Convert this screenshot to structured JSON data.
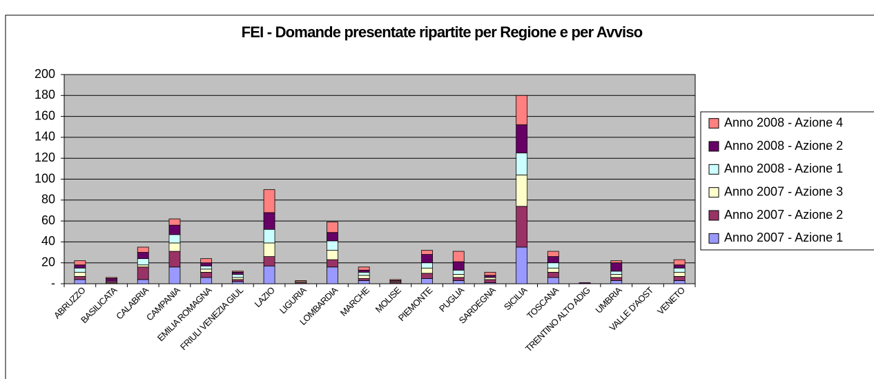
{
  "chart_data": {
    "type": "stacked_bar",
    "title": "FEI - Domande presentate ripartite per Regione e per Avviso",
    "categories": [
      "ABRUZZO",
      "BASILICATA",
      "CALABRIA",
      "CAMPANIA",
      "EMILIA ROMAGNA",
      "FRIULI VENEZIA GIUL",
      "LAZIO",
      "LIGURIA",
      "LOMBARDIA",
      "MARCHE",
      "MOLISE",
      "PIEMONTE",
      "PUGLIA",
      "SARDEGNA",
      "SICILIA",
      "TOSCANA",
      "TRENTINO ALTO ADIG",
      "UMBRIA",
      "VALLE D'AOST",
      "VENETO"
    ],
    "series": [
      {
        "name": "Anno 2007 - Azione 1",
        "color": "#9999FF",
        "values": [
          4,
          0,
          4,
          16,
          6,
          2,
          17,
          0,
          16,
          3,
          0,
          5,
          3,
          1,
          35,
          6,
          0,
          3,
          0,
          3
        ]
      },
      {
        "name": "Anno 2007 - Azione 2",
        "color": "#993366",
        "values": [
          3,
          1,
          12,
          15,
          5,
          2,
          9,
          1,
          7,
          2,
          1,
          5,
          3,
          3,
          39,
          5,
          0,
          3,
          0,
          4
        ]
      },
      {
        "name": "Anno 2007 - Azione 3",
        "color": "#FFFFCC",
        "values": [
          4,
          1,
          2,
          8,
          3,
          2,
          13,
          1,
          9,
          3,
          1,
          5,
          3,
          2,
          30,
          4,
          0,
          3,
          0,
          4
        ]
      },
      {
        "name": "Anno 2008 - Azione 1",
        "color": "#CCFFFF",
        "values": [
          4,
          0,
          6,
          8,
          3,
          3,
          13,
          0,
          9,
          3,
          0,
          5,
          4,
          0,
          21,
          5,
          0,
          3,
          0,
          4
        ]
      },
      {
        "name": "Anno 2008 - Azione 2",
        "color": "#660066",
        "values": [
          3,
          3,
          6,
          9,
          3,
          2,
          16,
          0,
          8,
          2,
          1,
          8,
          8,
          2,
          27,
          6,
          1,
          8,
          0,
          3
        ]
      },
      {
        "name": "Anno 2008 - Azione 4",
        "color": "#FF8080",
        "values": [
          4,
          1,
          5,
          6,
          4,
          1,
          22,
          1,
          10,
          3,
          1,
          4,
          10,
          3,
          28,
          5,
          0,
          2,
          0,
          5
        ]
      }
    ],
    "ylim": [
      0,
      200
    ],
    "yticks": [
      {
        "value": 0,
        "label": "-"
      },
      20,
      40,
      60,
      80,
      100,
      120,
      140,
      160,
      180,
      200
    ],
    "grid": true,
    "plot_background": "#C0C0C0",
    "legend": "right"
  }
}
